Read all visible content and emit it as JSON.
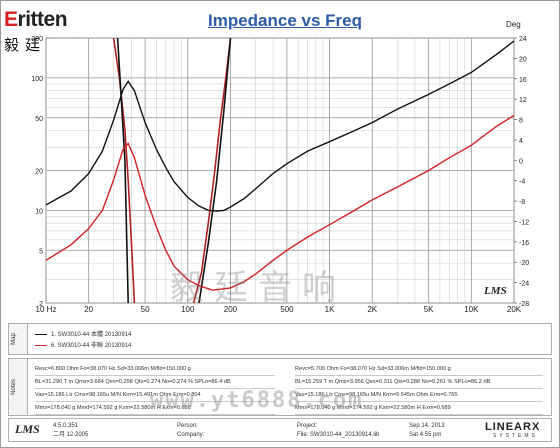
{
  "brand": {
    "logo_prefix": "E",
    "logo_rest": "ritten",
    "cn_name": "毅廷音响"
  },
  "chart_data": [
    {
      "type": "line",
      "title": "Impedance vs Freq",
      "x_scale": "log",
      "xlim": [
        10,
        20000
      ],
      "x_ticks": [
        "10 Hz",
        "20",
        "50",
        "100",
        "200",
        "500",
        "1K",
        "2K",
        "5K",
        "10K",
        "20K"
      ],
      "x_tick_values": [
        10,
        20,
        50,
        100,
        200,
        500,
        1000,
        2000,
        5000,
        10000,
        20000
      ],
      "y_scale": "log",
      "ylim": [
        2,
        200
      ],
      "y_ticks": [
        "200",
        "100",
        "50",
        "20",
        "10",
        "5",
        "2"
      ],
      "y_tick_values": [
        200,
        100,
        50,
        20,
        10,
        5,
        2
      ],
      "y2_label": "Deg",
      "y2lim": [
        -28,
        24
      ],
      "y2_ticks": [
        "24",
        "20",
        "16",
        "12",
        "8",
        "4",
        "0",
        "-4",
        "-8",
        "-12",
        "-16",
        "-20",
        "-24",
        "-28"
      ],
      "y2_tick_values": [
        24,
        20,
        16,
        12,
        8,
        4,
        0,
        -4,
        -8,
        -12,
        -16,
        -20,
        -24,
        -28
      ],
      "grid": true,
      "series": [
        {
          "name": "1. SW3010-44 本體 20130914",
          "color": "#111111",
          "x": [
            10,
            15,
            20,
            25,
            30,
            35,
            38,
            42,
            50,
            60,
            70,
            80,
            100,
            120,
            140,
            160,
            180,
            200,
            250,
            300,
            400,
            500,
            700,
            1000,
            1500,
            2000,
            3000,
            5000,
            7000,
            10000,
            15000,
            20000
          ],
          "y": [
            11,
            14,
            19,
            28,
            48,
            82,
            94,
            80,
            46,
            29,
            21,
            16.5,
            12.5,
            10.8,
            10.0,
            9.9,
            10.0,
            10.6,
            12.3,
            14.5,
            19,
            22.5,
            28,
            33,
            40,
            46,
            58,
            75,
            90,
            110,
            150,
            190
          ]
        },
        {
          "name": "6. SW3010-44 非聯 20130914",
          "color": "#d42020",
          "x": [
            10,
            15,
            20,
            25,
            30,
            35,
            38,
            42,
            50,
            60,
            70,
            80,
            100,
            120,
            150,
            200,
            250,
            300,
            400,
            500,
            700,
            1000,
            1500,
            2000,
            3000,
            5000,
            7000,
            10000,
            15000,
            20000
          ],
          "y": [
            4.2,
            5.5,
            7.3,
            10,
            17,
            29,
            32,
            25,
            13,
            7.5,
            5.0,
            3.8,
            3.0,
            2.7,
            2.5,
            2.6,
            2.9,
            3.3,
            4.2,
            5.0,
            6.3,
            7.8,
            10,
            12,
            15,
            20,
            25,
            31,
            43,
            52
          ]
        }
      ],
      "phase_series": [
        {
          "color": "#b02020",
          "x": [
            30,
            33,
            36,
            38,
            40,
            42
          ],
          "deg": [
            24,
            16,
            6,
            -4,
            -16,
            -28
          ]
        },
        {
          "color": "#b02020",
          "x": [
            110,
            125,
            140,
            155,
            170,
            185,
            200
          ],
          "deg": [
            -28,
            -22,
            -12,
            -2,
            8,
            16,
            24
          ]
        },
        {
          "color": "#111111",
          "x": [
            32,
            34,
            36,
            38
          ],
          "deg": [
            24,
            12,
            0,
            -28
          ]
        },
        {
          "color": "#111111",
          "x": [
            120,
            140,
            160,
            180,
            200
          ],
          "deg": [
            -28,
            -16,
            -4,
            10,
            24
          ]
        }
      ]
    }
  ],
  "watermark_text": "毅廷音响",
  "chart_badge": "LMS",
  "panels": {
    "map_label": "Map",
    "notes_label": "Notes",
    "legend": [
      "1. SW3010-44 本體 20130914",
      "6. SW3010-44 非聯 20130914"
    ],
    "notes_left": [
      "Revc=6.800 Ohm  Fo=38.070 Hz  Sd=33.006m M/fld=150.000 g",
      "BL=31.290 T m  Qms=3.684  Qes=0.298  Qts=0.274  No=0.274 %  SPLo=86.4 dB",
      "Vas=15.186 Ltr  Cms=98.165u M/N  Krm=15.491m Ohm  Erm=0.804",
      "Mms=178.040 g  Mmd=174.592 g  Kxm=22.580m H  Exm=0.688"
    ],
    "notes_right": [
      "Revc=5.700 Ohm  Fo=38.070 Hz  Sd=33.006m M/fld=150.000 g",
      "BL=15.259 T m  Qms=3.956  Qes=0.311  Qts=0.288  No=0.261 %  SPLo=86.2 dB",
      "Vas=15.186 Ltr  Cms=98.165u M/N  Krm=5.545m Ohm  Erm=0.765",
      "Mms=178.040 g  Mmd=174.592 g  Kxm=22.580m H  Exm=0.689"
    ]
  },
  "url_watermark": "www.yt6888.com",
  "footer": {
    "lms_logo": "LMS",
    "version": "4.5.0.351",
    "version_date": "二月 12 2005",
    "person_label": "Person:",
    "company_label": "Company:",
    "project_label": "Project:",
    "file_label": "File: SW3010-44_20130914.lib",
    "date": "Sep 14, 2013",
    "time": "Sat  4:55 pm",
    "brand": "LINEARX",
    "brand_sub": "SYSTEMS"
  }
}
